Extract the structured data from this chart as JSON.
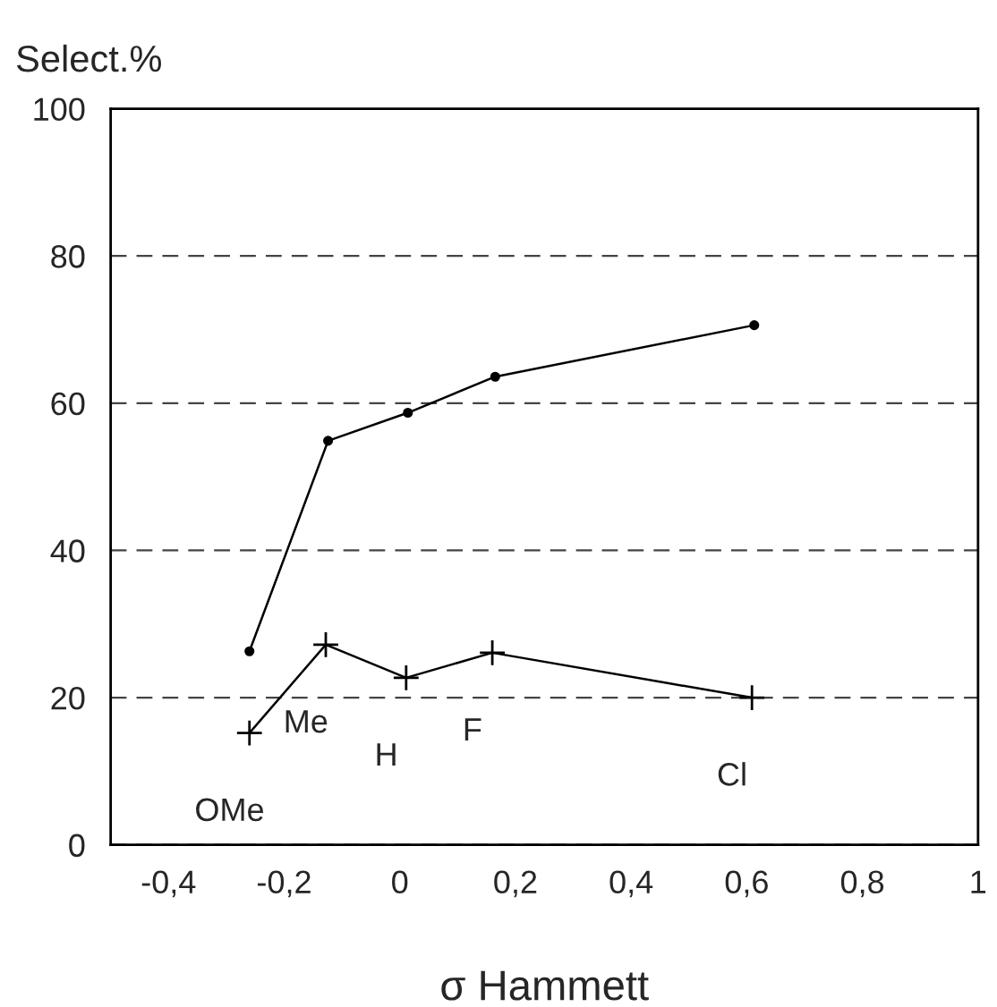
{
  "chart_data": {
    "type": "line",
    "ylabel": "Select.%",
    "xlabel": "σ Hammett",
    "xlim": [
      -0.5,
      1.0
    ],
    "xticks": [
      {
        "value": -0.4,
        "label": "-0,4"
      },
      {
        "value": -0.2,
        "label": "-0,2"
      },
      0,
      {
        "value": 0.2,
        "label": "0,2"
      },
      {
        "value": 0.4,
        "label": "0,4"
      },
      {
        "value": 0.6,
        "label": "0,6"
      },
      {
        "value": 0.8,
        "label": "0,8"
      },
      1
    ],
    "ylim": [
      0,
      100
    ],
    "yticks": [
      0,
      20,
      40,
      60,
      80,
      100
    ],
    "grid": "y",
    "line_style": "solid",
    "series": [
      {
        "color": "#000000",
        "marker": "circle",
        "x": [
          -0.26,
          -0.124,
          0.014,
          0.165,
          0.613
        ],
        "values": [
          26.3,
          54.9,
          58.7,
          63.6,
          70.6
        ]
      },
      {
        "color": "#000000",
        "marker": "cross",
        "x": [
          -0.26,
          -0.128,
          0.011,
          0.16,
          0.609
        ],
        "values": [
          15.2,
          27.2,
          22.7,
          26.1,
          20.0
        ]
      }
    ],
    "annotations": [
      {
        "text": "OMe",
        "x": -0.26,
        "y": 15.2
      },
      {
        "text": "Me",
        "x": -0.128,
        "y": 27.2
      },
      {
        "text": "H",
        "x": 0.011,
        "y": 22.7
      },
      {
        "text": "F",
        "x": 0.16,
        "y": 26.1
      },
      {
        "text": "Cl",
        "x": 0.609,
        "y": 20.0
      }
    ]
  }
}
